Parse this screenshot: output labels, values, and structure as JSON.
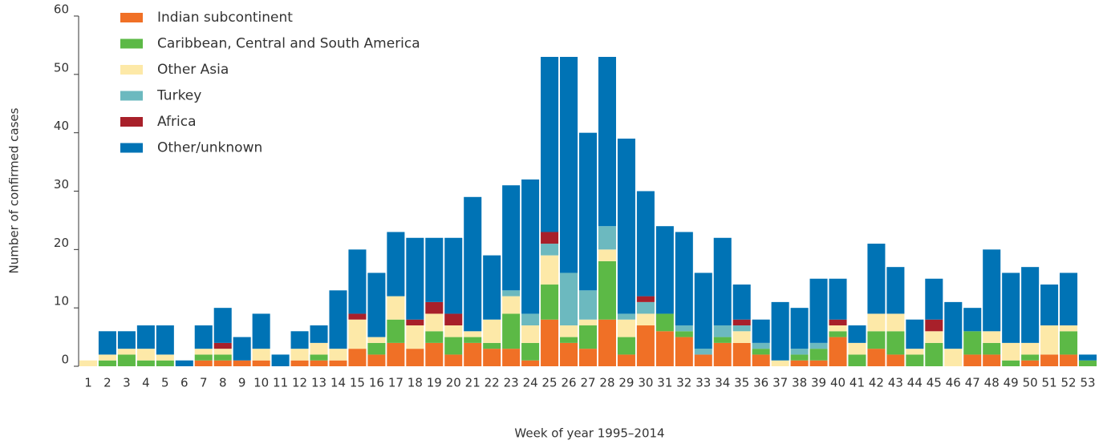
{
  "chart_data": {
    "type": "stacked_bar",
    "ylabel": "Number of confirmed cases",
    "xlabel": "Week of year 1995–2014",
    "categories": [
      "1",
      "2",
      "3",
      "4",
      "5",
      "6",
      "7",
      "8",
      "9",
      "10",
      "11",
      "12",
      "13",
      "14",
      "15",
      "16",
      "17",
      "18",
      "19",
      "20",
      "21",
      "22",
      "23",
      "24",
      "25",
      "26",
      "27",
      "28",
      "29",
      "30",
      "31",
      "32",
      "33",
      "34",
      "35",
      "36",
      "37",
      "38",
      "39",
      "40",
      "41",
      "42",
      "43",
      "44",
      "45",
      "46",
      "47",
      "48",
      "49",
      "50",
      "51",
      "52",
      "53"
    ],
    "ylim": [
      0,
      60
    ],
    "yticks": [
      0,
      10,
      20,
      30,
      40,
      50,
      60
    ],
    "legend": "upper left",
    "series": [
      {
        "name": "Indian subcontinent",
        "color": "#f07026",
        "values": [
          0,
          0,
          0,
          0,
          0,
          0,
          1,
          1,
          1,
          1,
          0,
          1,
          1,
          1,
          3,
          2,
          4,
          3,
          4,
          2,
          4,
          3,
          3,
          1,
          8,
          4,
          3,
          8,
          2,
          7,
          6,
          5,
          2,
          4,
          4,
          2,
          0,
          1,
          1,
          5,
          0,
          3,
          2,
          0,
          0,
          0,
          2,
          2,
          0,
          1,
          2,
          2,
          0
        ]
      },
      {
        "name": "Caribbean, Central and South America",
        "color": "#5cb946",
        "values": [
          0,
          1,
          2,
          1,
          1,
          0,
          1,
          1,
          0,
          0,
          0,
          0,
          1,
          0,
          0,
          2,
          4,
          0,
          2,
          3,
          1,
          1,
          6,
          3,
          6,
          1,
          4,
          10,
          3,
          0,
          3,
          1,
          0,
          1,
          0,
          1,
          0,
          1,
          2,
          1,
          2,
          3,
          4,
          2,
          4,
          0,
          4,
          2,
          1,
          1,
          0,
          4,
          1
        ]
      },
      {
        "name": "Other Asia",
        "color": "#fde9a8",
        "values": [
          1,
          1,
          1,
          2,
          1,
          0,
          1,
          1,
          0,
          2,
          0,
          2,
          2,
          2,
          5,
          1,
          4,
          4,
          3,
          2,
          1,
          4,
          3,
          3,
          5,
          2,
          1,
          2,
          3,
          2,
          0,
          0,
          0,
          0,
          2,
          0,
          1,
          0,
          0,
          1,
          2,
          3,
          3,
          1,
          2,
          3,
          0,
          2,
          3,
          2,
          5,
          1,
          0
        ]
      },
      {
        "name": "Turkey",
        "color": "#6cb9bf",
        "values": [
          0,
          0,
          0,
          0,
          0,
          0,
          0,
          0,
          0,
          0,
          0,
          0,
          0,
          0,
          0,
          0,
          0,
          0,
          0,
          0,
          0,
          0,
          1,
          2,
          2,
          9,
          5,
          4,
          1,
          2,
          0,
          1,
          1,
          2,
          1,
          1,
          0,
          1,
          1,
          0,
          0,
          0,
          0,
          0,
          0,
          0,
          0,
          0,
          0,
          0,
          0,
          0,
          0
        ]
      },
      {
        "name": "Africa",
        "color": "#a8202a",
        "values": [
          0,
          0,
          0,
          0,
          0,
          0,
          0,
          1,
          0,
          0,
          0,
          0,
          0,
          0,
          1,
          0,
          0,
          1,
          2,
          2,
          0,
          0,
          0,
          0,
          2,
          0,
          0,
          0,
          0,
          1,
          0,
          0,
          0,
          0,
          1,
          0,
          0,
          0,
          0,
          1,
          0,
          0,
          0,
          0,
          2,
          0,
          0,
          0,
          0,
          0,
          0,
          0,
          0
        ]
      },
      {
        "name": "Other/unknown",
        "color": "#0073b5",
        "values": [
          0,
          4,
          3,
          4,
          5,
          1,
          4,
          6,
          4,
          6,
          2,
          3,
          3,
          10,
          11,
          11,
          11,
          14,
          11,
          13,
          23,
          11,
          18,
          23,
          30,
          37,
          27,
          29,
          30,
          18,
          15,
          16,
          13,
          15,
          6,
          4,
          10,
          7,
          11,
          7,
          3,
          12,
          8,
          5,
          7,
          8,
          4,
          14,
          12,
          13,
          7,
          9,
          1
        ]
      }
    ]
  }
}
